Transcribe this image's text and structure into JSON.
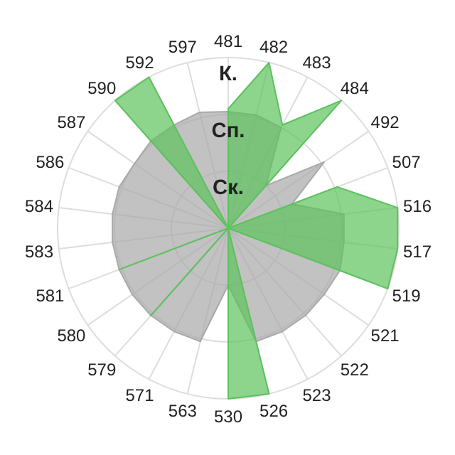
{
  "chart_data": {
    "type": "radar",
    "categories": [
      "481",
      "482",
      "483",
      "484",
      "492",
      "507",
      "516",
      "517",
      "519",
      "521",
      "522",
      "523",
      "526",
      "530",
      "563",
      "571",
      "579",
      "580",
      "581",
      "583",
      "584",
      "586",
      "587",
      "590",
      "592",
      "597"
    ],
    "series": [
      {
        "color": "#a8a8a8",
        "values": [
          2.05,
          2.05,
          2.0,
          1.0,
          2.05,
          1.2,
          2.05,
          2.05,
          2.1,
          2.05,
          2.05,
          2.05,
          2.05,
          1.0,
          2.05,
          2.05,
          2.05,
          2.05,
          2.05,
          2.05,
          2.05,
          2.05,
          2.0,
          2.05,
          2.05,
          2.1
        ]
      },
      {
        "color": "#5cc25c",
        "values": [
          2.1,
          3.0,
          2.05,
          3.0,
          0,
          2.05,
          3.0,
          3.0,
          3.0,
          0,
          0,
          0,
          3.0,
          3.0,
          0,
          0,
          2.05,
          0,
          2.05,
          0,
          0,
          0,
          0,
          3.0,
          3.0,
          0
        ]
      }
    ],
    "ylim": [
      0,
      3
    ],
    "yticks": [
      {
        "value": 1,
        "label": "Ск."
      },
      {
        "value": 2,
        "label": "Сп."
      },
      {
        "value": 3,
        "label": "К."
      }
    ],
    "grid": true
  }
}
